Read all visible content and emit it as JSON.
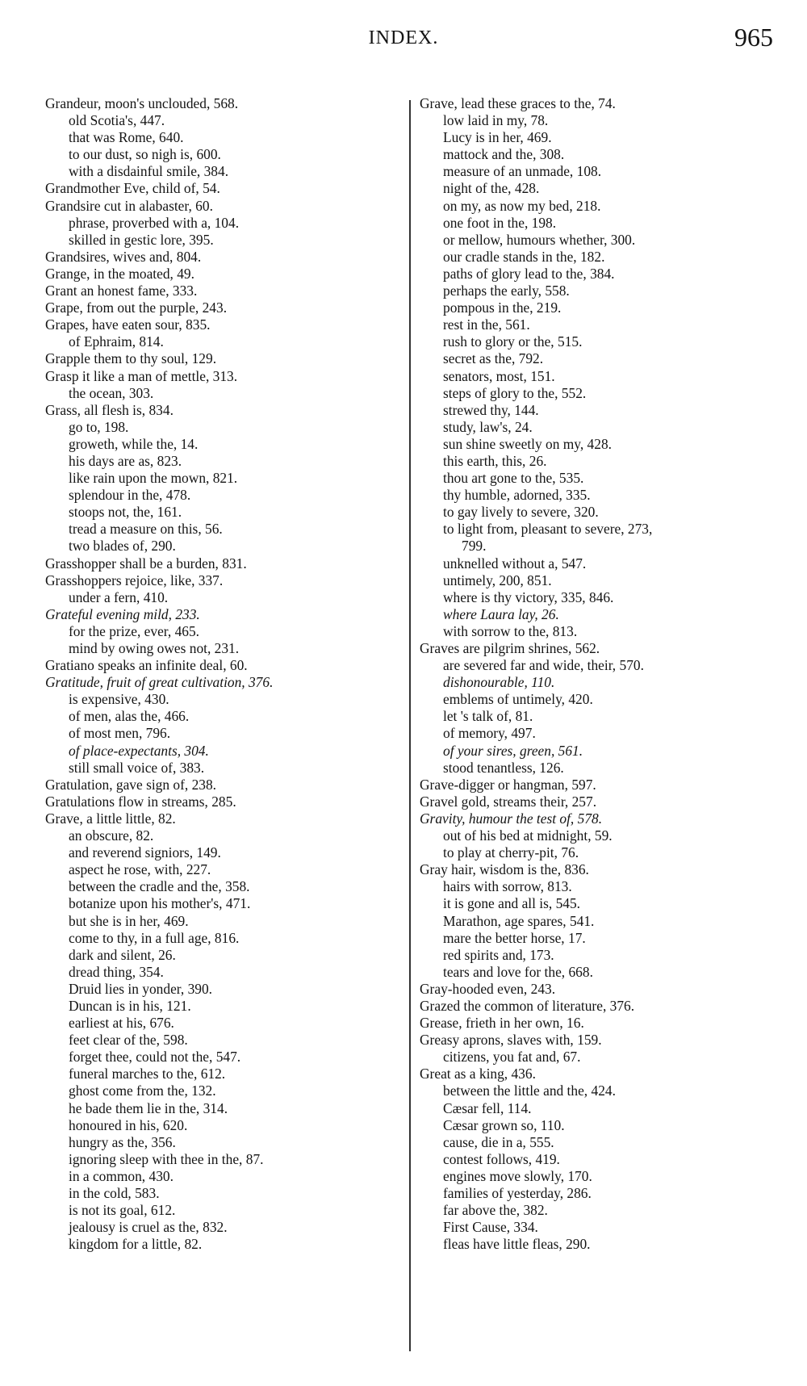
{
  "header": {
    "title": "INDEX.",
    "page_number": "965"
  },
  "left": [
    {
      "t": "Grandeur, moon's unclouded, 568.",
      "l": 0
    },
    {
      "t": "old Scotia's, 447.",
      "l": 1
    },
    {
      "t": "that was Rome, 640.",
      "l": 1
    },
    {
      "t": "to our dust, so nigh is, 600.",
      "l": 1
    },
    {
      "t": "with a disdainful smile, 384.",
      "l": 1
    },
    {
      "t": "Grandmother Eve, child of, 54.",
      "l": 0
    },
    {
      "t": "Grandsire cut in alabaster, 60.",
      "l": 0
    },
    {
      "t": "phrase, proverbed with a, 104.",
      "l": 1
    },
    {
      "t": "skilled in gestic lore, 395.",
      "l": 1
    },
    {
      "t": "Grandsires, wives and, 804.",
      "l": 0
    },
    {
      "t": "Grange, in the moated, 49.",
      "l": 0
    },
    {
      "t": "Grant an honest fame, 333.",
      "l": 0
    },
    {
      "t": "Grape, from out the purple, 243.",
      "l": 0
    },
    {
      "t": "Grapes, have eaten sour, 835.",
      "l": 0
    },
    {
      "t": "of Ephraim, 814.",
      "l": 1
    },
    {
      "t": "Grapple them to thy soul, 129.",
      "l": 0
    },
    {
      "t": "Grasp it like a man of mettle, 313.",
      "l": 0
    },
    {
      "t": "the ocean, 303.",
      "l": 1
    },
    {
      "t": "Grass, all flesh is, 834.",
      "l": 0
    },
    {
      "t": "go to, 198.",
      "l": 1
    },
    {
      "t": "groweth, while the, 14.",
      "l": 1
    },
    {
      "t": "his days are as, 823.",
      "l": 1
    },
    {
      "t": "like rain upon the mown, 821.",
      "l": 1
    },
    {
      "t": "splendour in the, 478.",
      "l": 1
    },
    {
      "t": "stoops not, the, 161.",
      "l": 1
    },
    {
      "t": "tread a measure on this, 56.",
      "l": 1
    },
    {
      "t": "two blades of, 290.",
      "l": 1
    },
    {
      "t": "Grasshopper shall be a burden, 831.",
      "l": 0
    },
    {
      "t": "Grasshoppers rejoice, like, 337.",
      "l": 0
    },
    {
      "t": "under a fern, 410.",
      "l": 1
    },
    {
      "t": "Grateful evening mild, 233.",
      "l": 0,
      "i": true
    },
    {
      "t": "for the prize, ever, 465.",
      "l": 1
    },
    {
      "t": "mind by owing owes not, 231.",
      "l": 1
    },
    {
      "t": "Gratiano speaks an infinite deal, 60.",
      "l": 0
    },
    {
      "t": "Gratitude, fruit of great cultivation, 376.",
      "l": 0,
      "i": true
    },
    {
      "t": "is expensive, 430.",
      "l": 1
    },
    {
      "t": "of men, alas the, 466.",
      "l": 1
    },
    {
      "t": "of most men, 796.",
      "l": 1
    },
    {
      "t": "of place-expectants, 304.",
      "l": 1,
      "i": true
    },
    {
      "t": "still small voice of, 383.",
      "l": 1
    },
    {
      "t": "Gratulation, gave sign of, 238.",
      "l": 0
    },
    {
      "t": "Gratulations flow in streams, 285.",
      "l": 0
    },
    {
      "t": "Grave, a little little, 82.",
      "l": 0
    },
    {
      "t": "an obscure, 82.",
      "l": 1
    },
    {
      "t": "and reverend signiors, 149.",
      "l": 1
    },
    {
      "t": "aspect he rose, with, 227.",
      "l": 1
    },
    {
      "t": "between the cradle and the, 358.",
      "l": 1
    },
    {
      "t": "botanize upon his mother's, 471.",
      "l": 1
    },
    {
      "t": "but she is in her, 469.",
      "l": 1
    },
    {
      "t": "come to thy, in a full age, 816.",
      "l": 1
    },
    {
      "t": "dark and silent, 26.",
      "l": 1
    },
    {
      "t": "dread thing, 354.",
      "l": 1
    },
    {
      "t": "Druid lies in yonder, 390.",
      "l": 1
    },
    {
      "t": "Duncan is in his, 121.",
      "l": 1
    },
    {
      "t": "earliest at his, 676.",
      "l": 1
    },
    {
      "t": "feet clear of the, 598.",
      "l": 1
    },
    {
      "t": "forget thee, could not the, 547.",
      "l": 1
    },
    {
      "t": "funeral marches to the, 612.",
      "l": 1
    },
    {
      "t": "ghost come from the, 132.",
      "l": 1
    },
    {
      "t": "he bade them lie in the, 314.",
      "l": 1
    },
    {
      "t": "honoured in his, 620.",
      "l": 1
    },
    {
      "t": "hungry as the, 356.",
      "l": 1
    },
    {
      "t": "ignoring sleep with thee in the, 87.",
      "l": 1
    },
    {
      "t": "in a common, 430.",
      "l": 1
    },
    {
      "t": "in the cold, 583.",
      "l": 1
    },
    {
      "t": "is not its goal, 612.",
      "l": 1
    },
    {
      "t": "jealousy is cruel as the, 832.",
      "l": 1
    },
    {
      "t": "kingdom for a little, 82.",
      "l": 1
    }
  ],
  "right": [
    {
      "t": "Grave, lead these graces to the, 74.",
      "l": 0
    },
    {
      "t": "low laid in my, 78.",
      "l": 1
    },
    {
      "t": "Lucy is in her, 469.",
      "l": 1
    },
    {
      "t": "mattock and the, 308.",
      "l": 1
    },
    {
      "t": "measure of an unmade, 108.",
      "l": 1
    },
    {
      "t": "night of the, 428.",
      "l": 1
    },
    {
      "t": "on my, as now my bed, 218.",
      "l": 1
    },
    {
      "t": "one foot in the, 198.",
      "l": 1
    },
    {
      "t": "or mellow, humours whether, 300.",
      "l": 1
    },
    {
      "t": "our cradle stands in the, 182.",
      "l": 1
    },
    {
      "t": "paths of glory lead to the, 384.",
      "l": 1
    },
    {
      "t": "perhaps the early, 558.",
      "l": 1
    },
    {
      "t": "pompous in the, 219.",
      "l": 1
    },
    {
      "t": "rest in the, 561.",
      "l": 1
    },
    {
      "t": "rush to glory or the, 515.",
      "l": 1
    },
    {
      "t": "secret as the, 792.",
      "l": 1
    },
    {
      "t": "senators, most, 151.",
      "l": 1
    },
    {
      "t": "steps of glory to the, 552.",
      "l": 1
    },
    {
      "t": "strewed thy, 144.",
      "l": 1
    },
    {
      "t": "study, law's, 24.",
      "l": 1
    },
    {
      "t": "sun shine sweetly on my, 428.",
      "l": 1
    },
    {
      "t": "this earth, this, 26.",
      "l": 1
    },
    {
      "t": "thou art gone to the, 535.",
      "l": 1
    },
    {
      "t": "thy humble, adorned, 335.",
      "l": 1
    },
    {
      "t": "to gay lively to severe, 320.",
      "l": 1
    },
    {
      "t": "to light from, pleasant to severe, 273,",
      "l": 1
    },
    {
      "t": "799.",
      "l": 2
    },
    {
      "t": "unknelled without a, 547.",
      "l": 1
    },
    {
      "t": "untimely, 200, 851.",
      "l": 1
    },
    {
      "t": "where is thy victory, 335, 846.",
      "l": 1
    },
    {
      "t": "where Laura lay, 26.",
      "l": 1,
      "i": true
    },
    {
      "t": "with sorrow to the, 813.",
      "l": 1
    },
    {
      "t": "Graves are pilgrim shrines, 562.",
      "l": 0
    },
    {
      "t": "are severed far and wide, their, 570.",
      "l": 1
    },
    {
      "t": "dishonourable, 110.",
      "l": 1,
      "i": true
    },
    {
      "t": "emblems of untimely, 420.",
      "l": 1
    },
    {
      "t": "let 's talk of, 81.",
      "l": 1
    },
    {
      "t": "of memory, 497.",
      "l": 1
    },
    {
      "t": "of your sires, green, 561.",
      "l": 1,
      "i": true
    },
    {
      "t": "stood tenantless, 126.",
      "l": 1
    },
    {
      "t": "Grave-digger or hangman, 597.",
      "l": 0
    },
    {
      "t": "Gravel gold, streams their, 257.",
      "l": 0
    },
    {
      "t": "Gravity, humour the test of, 578.",
      "l": 0,
      "i": true
    },
    {
      "t": "out of his bed at midnight, 59.",
      "l": 1
    },
    {
      "t": "to play at cherry-pit, 76.",
      "l": 1
    },
    {
      "t": "Gray hair, wisdom is the, 836.",
      "l": 0
    },
    {
      "t": "hairs with sorrow, 813.",
      "l": 1
    },
    {
      "t": "it is gone and all is, 545.",
      "l": 1
    },
    {
      "t": "Marathon, age spares, 541.",
      "l": 1
    },
    {
      "t": "mare the better horse, 17.",
      "l": 1
    },
    {
      "t": "red spirits and, 173.",
      "l": 1
    },
    {
      "t": "tears and love for the, 668.",
      "l": 1
    },
    {
      "t": "Gray-hooded even, 243.",
      "l": 0
    },
    {
      "t": "Grazed the common of literature, 376.",
      "l": 0
    },
    {
      "t": "Grease, frieth in her own, 16.",
      "l": 0
    },
    {
      "t": "Greasy aprons, slaves with, 159.",
      "l": 0
    },
    {
      "t": "citizens, you fat and, 67.",
      "l": 1
    },
    {
      "t": "Great as a king, 436.",
      "l": 0
    },
    {
      "t": "between the little and the, 424.",
      "l": 1
    },
    {
      "t": "Cæsar fell, 114.",
      "l": 1
    },
    {
      "t": "Cæsar grown so, 110.",
      "l": 1
    },
    {
      "t": "cause, die in a, 555.",
      "l": 1
    },
    {
      "t": "contest follows, 419.",
      "l": 1
    },
    {
      "t": "engines move slowly, 170.",
      "l": 1
    },
    {
      "t": "families of yesterday, 286.",
      "l": 1
    },
    {
      "t": "far above the, 382.",
      "l": 1
    },
    {
      "t": "First Cause, 334.",
      "l": 1
    },
    {
      "t": "fleas have little fleas, 290.",
      "l": 1
    }
  ]
}
